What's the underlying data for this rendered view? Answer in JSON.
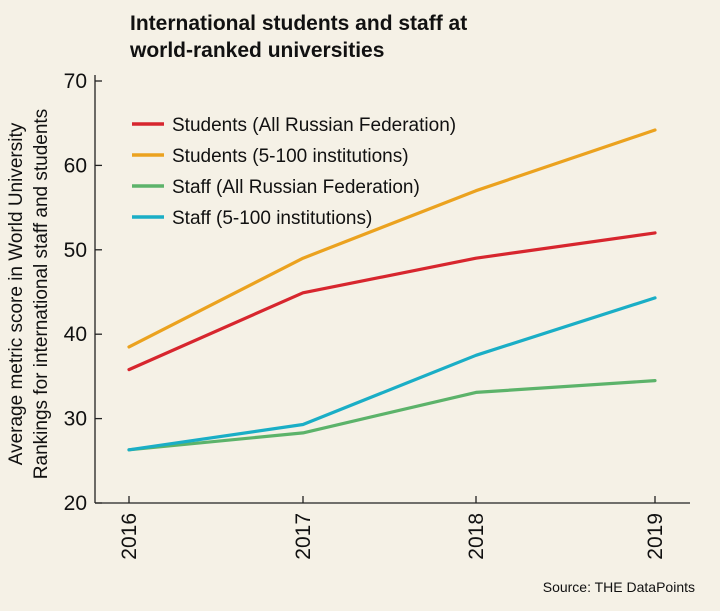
{
  "chart_data": {
    "type": "line",
    "title": [
      "International students and staff at",
      "world-ranked universities"
    ],
    "ylabel": [
      "Average metric score in World University",
      "Rankings for international staff and students"
    ],
    "xlabel": "",
    "categories": [
      "2016",
      "2017",
      "2018",
      "2019"
    ],
    "ylim": [
      20,
      70
    ],
    "yticks": [
      20,
      30,
      40,
      50,
      60,
      70
    ],
    "series": [
      {
        "name": "Students (All Russian Federation)",
        "color": "#d7262e",
        "values": [
          35.8,
          44.9,
          49.0,
          52.0
        ]
      },
      {
        "name": "Students (5-100 institutions)",
        "color": "#eba21f",
        "values": [
          38.5,
          49.0,
          57.0,
          64.2
        ]
      },
      {
        "name": "Staff (All Russian Federation)",
        "color": "#5cb36a",
        "values": [
          26.3,
          28.3,
          33.1,
          34.5
        ]
      },
      {
        "name": "Staff (5-100 institutions)",
        "color": "#1aaec6",
        "values": [
          26.3,
          29.3,
          37.5,
          44.3
        ]
      }
    ],
    "legend_position": "top-left",
    "grid": false,
    "source": "Source: THE DataPoints"
  }
}
